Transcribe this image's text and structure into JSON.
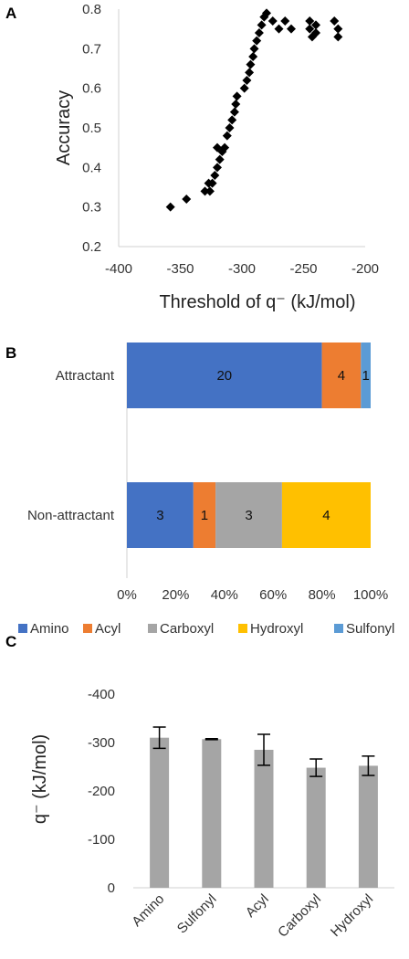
{
  "chart_data": [
    {
      "panel": "A",
      "type": "scatter",
      "xlabel": "Threshold of q⁻ (kJ/mol)",
      "ylabel": "Accuracy",
      "xlim": [
        -400,
        -200
      ],
      "ylim": [
        0.2,
        0.8
      ],
      "xticks": [
        "-400",
        "-350",
        "-300",
        "-250",
        "-200"
      ],
      "yticks": [
        "0.2",
        "0.3",
        "0.4",
        "0.5",
        "0.6",
        "0.7",
        "0.8"
      ],
      "grid": false,
      "marker": "diamond",
      "color": "#000000",
      "points": [
        [
          -358,
          0.3
        ],
        [
          -345,
          0.32
        ],
        [
          -330,
          0.34
        ],
        [
          -327,
          0.36
        ],
        [
          -326,
          0.34
        ],
        [
          -324,
          0.36
        ],
        [
          -322,
          0.38
        ],
        [
          -320,
          0.4
        ],
        [
          -318,
          0.42
        ],
        [
          -320,
          0.45
        ],
        [
          -316,
          0.44
        ],
        [
          -314,
          0.45
        ],
        [
          -312,
          0.48
        ],
        [
          -310,
          0.5
        ],
        [
          -308,
          0.52
        ],
        [
          -306,
          0.54
        ],
        [
          -305,
          0.56
        ],
        [
          -304,
          0.58
        ],
        [
          -298,
          0.6
        ],
        [
          -296,
          0.62
        ],
        [
          -294,
          0.64
        ],
        [
          -293,
          0.66
        ],
        [
          -291,
          0.68
        ],
        [
          -290,
          0.7
        ],
        [
          -288,
          0.72
        ],
        [
          -286,
          0.74
        ],
        [
          -284,
          0.76
        ],
        [
          -282,
          0.78
        ],
        [
          -280,
          0.79
        ],
        [
          -275,
          0.77
        ],
        [
          -270,
          0.75
        ],
        [
          -265,
          0.77
        ],
        [
          -260,
          0.75
        ],
        [
          -245,
          0.77
        ],
        [
          -245,
          0.75
        ],
        [
          -243,
          0.73
        ],
        [
          -240,
          0.76
        ],
        [
          -240,
          0.74
        ],
        [
          -225,
          0.77
        ],
        [
          -222,
          0.75
        ],
        [
          -222,
          0.73
        ]
      ]
    },
    {
      "panel": "B",
      "type": "bar",
      "orientation": "horizontal",
      "stacked": "percent",
      "categories": [
        "Attractant",
        "Non-attractant"
      ],
      "xticks": [
        "0%",
        "20%",
        "40%",
        "60%",
        "80%",
        "100%"
      ],
      "series": [
        {
          "name": "Amino",
          "color": "#4472C4",
          "values": [
            20,
            3
          ]
        },
        {
          "name": "Acyl",
          "color": "#ED7D31",
          "values": [
            4,
            1
          ]
        },
        {
          "name": "Carboxyl",
          "color": "#A5A5A5",
          "values": [
            0,
            3
          ]
        },
        {
          "name": "Hydroxyl",
          "color": "#FFC000",
          "values": [
            0,
            4
          ]
        },
        {
          "name": "Sulfonyl",
          "color": "#5B9BD5",
          "values": [
            1,
            0
          ]
        }
      ],
      "legend": "bottom"
    },
    {
      "panel": "C",
      "type": "bar",
      "ylabel": "q⁻ (kJ/mol)",
      "categories": [
        "Amino",
        "Sulfonyl",
        "Acyl",
        "Carboxyl",
        "Hydroxyl"
      ],
      "values": [
        -310,
        -307,
        -285,
        -248,
        -252
      ],
      "errors": [
        22,
        1,
        32,
        18,
        20
      ],
      "ylim": [
        0,
        -400
      ],
      "yticks": [
        "0",
        "-100",
        "-200",
        "-300",
        "-400"
      ],
      "color": "#A5A5A5",
      "grid": false
    }
  ]
}
